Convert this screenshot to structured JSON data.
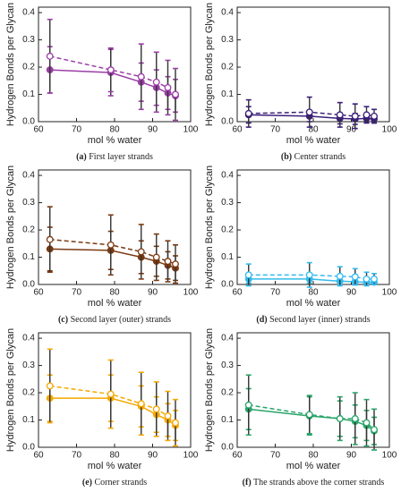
{
  "chart_data": [
    {
      "type": "line",
      "caption_label": "(a)",
      "caption": "First layer strands",
      "xlabel": "mol % water",
      "ylabel": "Hydrogen Bonds per Glycan",
      "x": [
        63,
        79,
        87,
        91,
        94,
        96
      ],
      "xlim": [
        60,
        100
      ],
      "xticks": [
        60,
        70,
        80,
        90,
        100
      ],
      "ylim": [
        0,
        0.42
      ],
      "yticks": [
        {
          "value": 0,
          "label": "0.0"
        },
        0.1,
        0.2,
        0.3,
        0.4
      ],
      "series": [
        {
          "color": "#9b3fa6",
          "style": "solid",
          "marker": "filled",
          "values": [
            0.19,
            0.18,
            0.145,
            0.125,
            0.105,
            0.095
          ],
          "errors": [
            0.085,
            0.085,
            0.07,
            0.065,
            0.06,
            0.06
          ]
        },
        {
          "color": "#9b3fa6",
          "style": "dashed",
          "marker": "open",
          "values": [
            0.24,
            0.19,
            0.165,
            0.145,
            0.125,
            0.1
          ],
          "errors": [
            0.135,
            0.08,
            0.12,
            0.11,
            0.1,
            0.095
          ]
        }
      ]
    },
    {
      "type": "line",
      "caption_label": "(b)",
      "caption": "Center strands",
      "xlabel": "mol % water",
      "ylabel": "Hydrogen Bonds per Glycan",
      "x": [
        63,
        79,
        87,
        91,
        94,
        96
      ],
      "xlim": [
        60,
        100
      ],
      "xticks": [
        60,
        70,
        80,
        90,
        100
      ],
      "ylim": [
        0,
        0.42
      ],
      "yticks": [
        {
          "value": 0,
          "label": "0.0"
        },
        0.1,
        0.2,
        0.3,
        0.4
      ],
      "series": [
        {
          "color": "#3b1f7a",
          "style": "solid",
          "marker": "filled",
          "values": [
            0.025,
            0.02,
            0.012,
            0.01,
            0.012,
            0.01
          ],
          "errors": [
            0.03,
            0.02,
            0.02,
            0.02,
            0.015,
            0.015
          ]
        },
        {
          "color": "#3b1f7a",
          "style": "dashed",
          "marker": "open",
          "values": [
            0.03,
            0.035,
            0.025,
            0.02,
            0.025,
            0.02
          ],
          "errors": [
            0.05,
            0.055,
            0.045,
            0.045,
            0.03,
            0.025
          ]
        }
      ]
    },
    {
      "type": "line",
      "caption_label": "(c)",
      "caption": "Second layer (outer) strands",
      "xlabel": "mol % water",
      "ylabel": "Hydrogen Bonds per Glycan",
      "x": [
        63,
        79,
        87,
        91,
        94,
        96
      ],
      "xlim": [
        60,
        100
      ],
      "xticks": [
        60,
        70,
        80,
        90,
        100
      ],
      "ylim": [
        0,
        0.42
      ],
      "yticks": [
        {
          "value": 0,
          "label": "0.0"
        },
        0.1,
        0.2,
        0.3,
        0.4
      ],
      "series": [
        {
          "color": "#7a3a12",
          "style": "solid",
          "marker": "filled",
          "values": [
            0.13,
            0.125,
            0.1,
            0.085,
            0.07,
            0.06
          ],
          "errors": [
            0.08,
            0.07,
            0.06,
            0.055,
            0.05,
            0.045
          ]
        },
        {
          "color": "#7a3a12",
          "style": "dashed",
          "marker": "open",
          "values": [
            0.165,
            0.145,
            0.12,
            0.1,
            0.085,
            0.075
          ],
          "errors": [
            0.12,
            0.11,
            0.1,
            0.085,
            0.075,
            0.07
          ]
        }
      ]
    },
    {
      "type": "line",
      "caption_label": "(d)",
      "caption": "Second layer (inner) strands",
      "xlabel": "mol % water",
      "ylabel": "Hydrogen Bonds per Glycan",
      "x": [
        63,
        79,
        87,
        91,
        94,
        96
      ],
      "xlim": [
        60,
        100
      ],
      "xticks": [
        60,
        70,
        80,
        90,
        100
      ],
      "ylim": [
        0,
        0.42
      ],
      "yticks": [
        {
          "value": 0,
          "label": "0.0"
        },
        0.1,
        0.2,
        0.3,
        0.4
      ],
      "series": [
        {
          "color": "#33bbee",
          "style": "solid",
          "marker": "filled",
          "values": [
            0.02,
            0.02,
            0.012,
            0.01,
            0.008,
            0.008
          ],
          "errors": [
            0.015,
            0.015,
            0.012,
            0.01,
            0.008,
            0.008
          ]
        },
        {
          "color": "#33bbee",
          "style": "dashed",
          "marker": "open",
          "values": [
            0.035,
            0.035,
            0.03,
            0.028,
            0.02,
            0.02
          ],
          "errors": [
            0.04,
            0.045,
            0.035,
            0.03,
            0.025,
            0.02
          ]
        }
      ]
    },
    {
      "type": "line",
      "caption_label": "(e)",
      "caption": "Corner strands",
      "xlabel": "mol % water",
      "ylabel": "Hydrogen Bonds per Glycan",
      "x": [
        63,
        79,
        87,
        91,
        94,
        96
      ],
      "xlim": [
        60,
        100
      ],
      "xticks": [
        60,
        70,
        80,
        90,
        100
      ],
      "ylim": [
        0,
        0.42
      ],
      "yticks": [
        {
          "value": 0,
          "label": "0.0"
        },
        0.1,
        0.2,
        0.3,
        0.4
      ],
      "series": [
        {
          "color": "#f5a800",
          "style": "solid",
          "marker": "filled",
          "values": [
            0.18,
            0.18,
            0.15,
            0.12,
            0.1,
            0.08
          ],
          "errors": [
            0.085,
            0.085,
            0.075,
            0.065,
            0.06,
            0.055
          ]
        },
        {
          "color": "#f5a800",
          "style": "dashed",
          "marker": "open",
          "values": [
            0.225,
            0.195,
            0.16,
            0.14,
            0.115,
            0.09
          ],
          "errors": [
            0.135,
            0.125,
            0.115,
            0.1,
            0.09,
            0.085
          ]
        }
      ]
    },
    {
      "type": "line",
      "caption_label": "(f)",
      "caption": "The strands above the corner strands",
      "xlabel": "mol % water",
      "ylabel": "Hydrogen Bonds per Glycan",
      "x": [
        63,
        79,
        87,
        91,
        94,
        96
      ],
      "xlim": [
        60,
        100
      ],
      "xticks": [
        60,
        70,
        80,
        90,
        100
      ],
      "ylim": [
        0,
        0.42
      ],
      "yticks": [
        {
          "value": 0,
          "label": "0.0"
        },
        0.1,
        0.2,
        0.3,
        0.4
      ],
      "series": [
        {
          "color": "#2aa56a",
          "style": "solid",
          "marker": "filled",
          "values": [
            0.14,
            0.115,
            0.105,
            0.095,
            0.08,
            0.06
          ],
          "errors": [
            0.075,
            0.07,
            0.065,
            0.06,
            0.055,
            0.05
          ]
        },
        {
          "color": "#2aa56a",
          "style": "dashed",
          "marker": "open",
          "values": [
            0.155,
            0.12,
            0.105,
            0.105,
            0.09,
            0.065
          ],
          "errors": [
            0.11,
            0.07,
            0.08,
            0.095,
            0.085,
            0.075
          ]
        }
      ]
    }
  ]
}
